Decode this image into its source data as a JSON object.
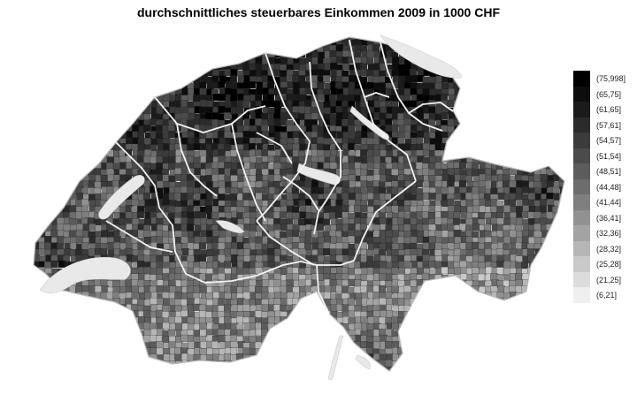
{
  "title": "durchschnittliches steuerbares Einkommen 2009 in 1000 CHF",
  "legend": {
    "classes": [
      {
        "label": "(75,998]",
        "color": "#000000"
      },
      {
        "label": "(65,75]",
        "color": "#0d0d0d"
      },
      {
        "label": "(61,65]",
        "color": "#1b1b1b"
      },
      {
        "label": "(57,61]",
        "color": "#2b2b2b"
      },
      {
        "label": "(54,57]",
        "color": "#3b3b3b"
      },
      {
        "label": "(51,54]",
        "color": "#4b4b4b"
      },
      {
        "label": "(48,51]",
        "color": "#5c5c5c"
      },
      {
        "label": "(44,48]",
        "color": "#6d6d6d"
      },
      {
        "label": "(41,44]",
        "color": "#7f7f7f"
      },
      {
        "label": "(36,41]",
        "color": "#919191"
      },
      {
        "label": "(32,36]",
        "color": "#a3a3a3"
      },
      {
        "label": "(28,32]",
        "color": "#b6b6b6"
      },
      {
        "label": "(25,28]",
        "color": "#c9c9c9"
      },
      {
        "label": "(21,25]",
        "color": "#dcdcdc"
      },
      {
        "label": "(6,21]",
        "color": "#efefef"
      }
    ]
  },
  "colors": {
    "canton_border": "#f2f2f2",
    "lake": "#e9e9e9",
    "municipality_border": "#1a1a1a"
  }
}
